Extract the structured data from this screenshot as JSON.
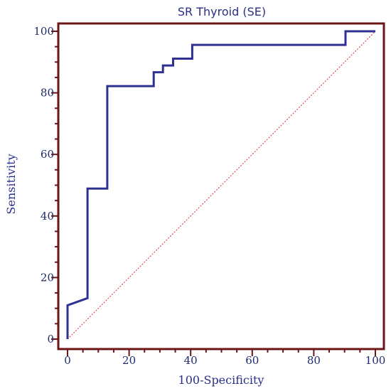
{
  "chart_data": {
    "type": "line",
    "title": "SR Thyroid (SE)",
    "xlabel": "100-Specificity",
    "ylabel": "Sensitivity",
    "xlim": [
      0,
      100
    ],
    "ylim": [
      0,
      100
    ],
    "xticks": [
      0,
      20,
      40,
      60,
      80,
      100
    ],
    "yticks": [
      0,
      20,
      40,
      60,
      80,
      100
    ],
    "grid": false,
    "legend": "none",
    "colors": {
      "roc": "#2e3192",
      "reference": "#e03030",
      "frame": "#6b1515",
      "text": "#2a2f8a"
    },
    "series": [
      {
        "values": [
          [
            0,
            0
          ],
          [
            0,
            11
          ],
          [
            6.5,
            13.3
          ],
          [
            6.5,
            48.9
          ],
          [
            12.9,
            48.9
          ],
          [
            12.9,
            82.2
          ],
          [
            28,
            82.2
          ],
          [
            28,
            86.7
          ],
          [
            31,
            86.7
          ],
          [
            31,
            88.9
          ],
          [
            34.3,
            88.9
          ],
          [
            34.3,
            91.1
          ],
          [
            40.5,
            91.1
          ],
          [
            40.5,
            95.6
          ],
          [
            90.3,
            95.6
          ],
          [
            90.3,
            100
          ],
          [
            100,
            100
          ]
        ]
      },
      {
        "values": [
          [
            0,
            0
          ],
          [
            100,
            100
          ]
        ]
      }
    ]
  }
}
